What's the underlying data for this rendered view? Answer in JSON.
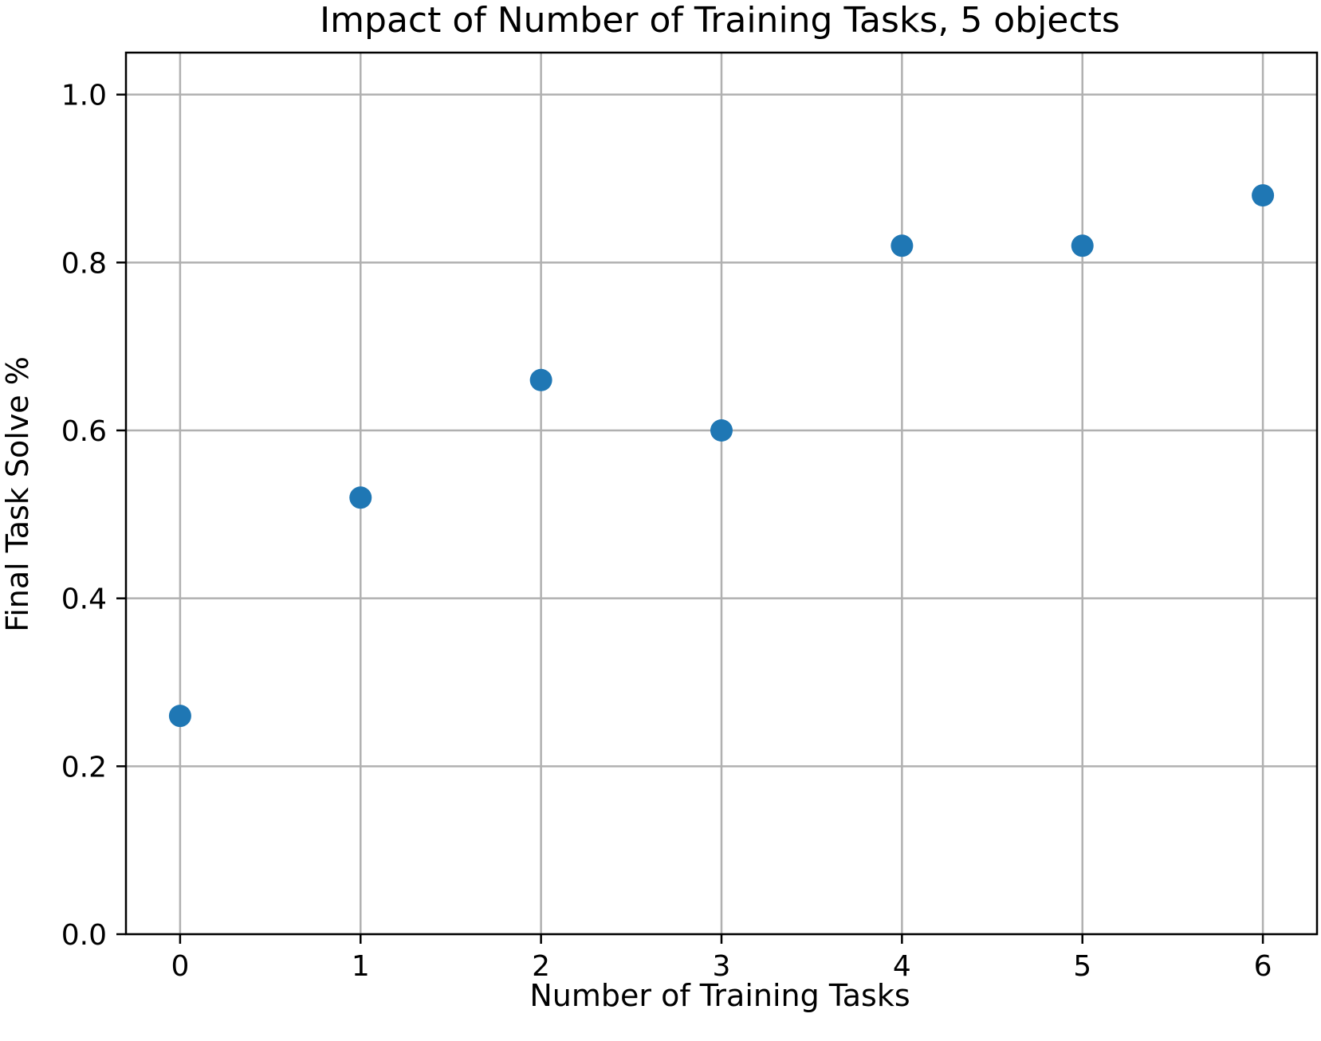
{
  "chart_data": {
    "type": "scatter",
    "title": "Impact of Number of Training Tasks, 5 objects",
    "xlabel": "Number of Training Tasks",
    "ylabel": "Final Task Solve %",
    "x": [
      0,
      1,
      2,
      3,
      4,
      5,
      6
    ],
    "y": [
      0.26,
      0.52,
      0.66,
      0.6,
      0.82,
      0.82,
      0.88
    ],
    "xlim": [
      -0.3,
      6.3
    ],
    "ylim": [
      0.0,
      1.05
    ],
    "xticks": [
      0,
      1,
      2,
      3,
      4,
      5,
      6
    ],
    "xtick_labels": [
      "0",
      "1",
      "2",
      "3",
      "4",
      "5",
      "6"
    ],
    "yticks": [
      0.0,
      0.2,
      0.4,
      0.6,
      0.8,
      1.0
    ],
    "ytick_labels": [
      "0.0",
      "0.2",
      "0.4",
      "0.6",
      "0.8",
      "1.0"
    ],
    "grid": true,
    "marker_color": "#1f77b4",
    "grid_color": "#b0b0b0"
  }
}
